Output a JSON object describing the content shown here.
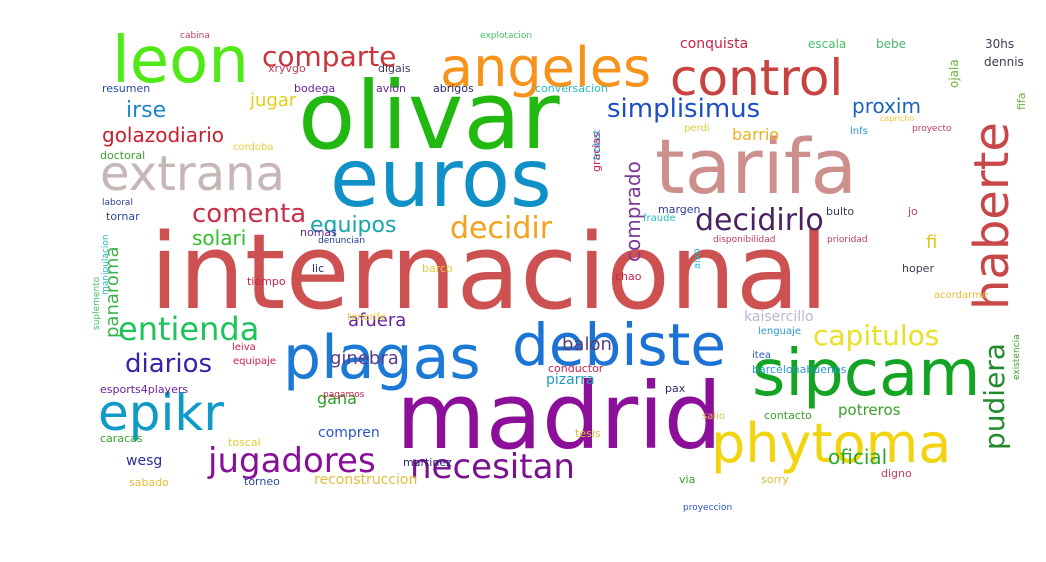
{
  "words": [
    {
      "text": "internacional",
      "color": "#cd5151"
    },
    {
      "text": "olivar",
      "color": "#21b80f"
    },
    {
      "text": "madrid",
      "color": "#8b0f99"
    },
    {
      "text": "euros",
      "color": "#0f91c8"
    },
    {
      "text": "tarifa",
      "color": "#cd8f8c"
    },
    {
      "text": "plagas",
      "color": "#1c7ad6"
    },
    {
      "text": "debiste",
      "color": "#1c73d6"
    },
    {
      "text": "sipcam",
      "color": "#12a422"
    },
    {
      "text": "phytoma",
      "color": "#f1d40d"
    },
    {
      "text": "leon",
      "color": "#4fea16"
    },
    {
      "text": "angeles",
      "color": "#f7931b"
    },
    {
      "text": "control",
      "color": "#c94242"
    },
    {
      "text": "extrana",
      "color": "#c6b6b6"
    },
    {
      "text": "haberte",
      "color": "#c94747"
    },
    {
      "text": "epikr",
      "color": "#0f9ac8"
    },
    {
      "text": "jugadores",
      "color": "#880f99"
    },
    {
      "text": "necesitan",
      "color": "#7a1191"
    },
    {
      "text": "entienda",
      "color": "#1ec45b"
    },
    {
      "text": "decidirlo",
      "color": "#4a2261"
    },
    {
      "text": "comparte",
      "color": "#c9353d"
    },
    {
      "text": "simplisimus",
      "color": "#1c4fc4"
    },
    {
      "text": "decidir",
      "color": "#f3a31b"
    },
    {
      "text": "comenta",
      "color": "#c9304c"
    },
    {
      "text": "capitulos",
      "color": "#e9e028"
    },
    {
      "text": "pudiera",
      "color": "#228a2c"
    },
    {
      "text": "diarios",
      "color": "#3d22a8"
    },
    {
      "text": "irse",
      "color": "#1e84c8"
    },
    {
      "text": "golazodiario",
      "color": "#c91e2e"
    },
    {
      "text": "jugar",
      "color": "#e4cd16"
    },
    {
      "text": "equipos",
      "color": "#18a6a8"
    },
    {
      "text": "proxim",
      "color": "#1e63b8"
    },
    {
      "text": "barrio",
      "color": "#e9b11e"
    },
    {
      "text": "solari",
      "color": "#2dbf24"
    },
    {
      "text": "comprado",
      "color": "#7b3b99"
    },
    {
      "text": "fi",
      "color": "#e3c21b"
    },
    {
      "text": "panaroma",
      "color": "#3eb34b"
    },
    {
      "text": "afuera",
      "color": "#6a229b"
    },
    {
      "text": "balon",
      "color": "#5a3e7a"
    },
    {
      "text": "ginebra",
      "color": "#5b3b8f"
    },
    {
      "text": "gana",
      "color": "#2b9e26"
    },
    {
      "text": "compren",
      "color": "#2a58c4"
    },
    {
      "text": "oficial",
      "color": "#2ba92e"
    },
    {
      "text": "potreros",
      "color": "#3aa12c"
    },
    {
      "text": "reconstruccion",
      "color": "#e3bd3a"
    },
    {
      "text": "wesg",
      "color": "#2c2c99"
    },
    {
      "text": "kaisercillo",
      "color": "#c0b5d3"
    },
    {
      "text": "pizarra",
      "color": "#1e9bb8"
    },
    {
      "text": "conquista",
      "color": "#c9224a"
    },
    {
      "text": "escala",
      "color": "#49c06a"
    },
    {
      "text": "bebe",
      "color": "#4bb36a"
    },
    {
      "text": "30hs",
      "color": "#3b3b55"
    },
    {
      "text": "ojala",
      "color": "#6bb332"
    },
    {
      "text": "dennis",
      "color": "#3b3b55"
    },
    {
      "text": "fifa",
      "color": "#68b33a"
    },
    {
      "text": "xryvgo",
      "color": "#c0405b"
    },
    {
      "text": "digais",
      "color": "#3b3b55"
    },
    {
      "text": "resumen",
      "color": "#2a4b9e"
    },
    {
      "text": "bodega",
      "color": "#6a229b"
    },
    {
      "text": "avion",
      "color": "#6a229b"
    },
    {
      "text": "abrigos",
      "color": "#2a2a6e"
    },
    {
      "text": "conversacion",
      "color": "#28b9c4"
    },
    {
      "text": "perdi",
      "color": "#e3cc3a"
    },
    {
      "text": "lnfs",
      "color": "#2a99d1"
    },
    {
      "text": "proyecto",
      "color": "#c0405b"
    },
    {
      "text": "capricho",
      "color": "#f2c23a"
    },
    {
      "text": "cordoba",
      "color": "#e8cc3a"
    },
    {
      "text": "doctoral",
      "color": "#3aa12c"
    },
    {
      "text": "gracias",
      "color": "#c9224a"
    },
    {
      "text": "trobat",
      "color": "#2a99d1"
    },
    {
      "text": "margen",
      "color": "#2c3d99"
    },
    {
      "text": "fraude",
      "color": "#28b9c4"
    },
    {
      "text": "bulto",
      "color": "#3b3b55"
    },
    {
      "text": "jo",
      "color": "#c0405b"
    },
    {
      "text": "laboral",
      "color": "#2c3d99"
    },
    {
      "text": "tornar",
      "color": "#2a4b9e"
    },
    {
      "text": "nomas",
      "color": "#6a229b"
    },
    {
      "text": "denuncian",
      "color": "#1e3c8a"
    },
    {
      "text": "disponibilidad",
      "color": "#c0405b"
    },
    {
      "text": "prioridad",
      "color": "#c0405b"
    },
    {
      "text": "manipulacion",
      "color": "#28b9c4"
    },
    {
      "text": "aixo",
      "color": "#28b9c4"
    },
    {
      "text": "lic",
      "color": "#2a2a6e"
    },
    {
      "text": "barco",
      "color": "#e3cc3a"
    },
    {
      "text": "hoper",
      "color": "#3b3b55"
    },
    {
      "text": "chao",
      "color": "#c9224a"
    },
    {
      "text": "tiempo",
      "color": "#c9224a"
    },
    {
      "text": "acordarme",
      "color": "#e3bd3a"
    },
    {
      "text": "suplemento",
      "color": "#49c06a"
    },
    {
      "text": "tenerife",
      "color": "#e3cc3a"
    },
    {
      "text": "lenguaje",
      "color": "#2a99d1"
    },
    {
      "text": "leiva",
      "color": "#c9224a"
    },
    {
      "text": "itea",
      "color": "#2a58c4"
    },
    {
      "text": "existencia",
      "color": "#3aa12c"
    },
    {
      "text": "equipaje",
      "color": "#c9224a"
    },
    {
      "text": "barcelonabuenos",
      "color": "#2a99d1"
    },
    {
      "text": "esports4players",
      "color": "#6a229b"
    },
    {
      "text": "conductor",
      "color": "#c9224a"
    },
    {
      "text": "pax",
      "color": "#2a2a6e"
    },
    {
      "text": "pagamos",
      "color": "#c9224a"
    },
    {
      "text": "salio",
      "color": "#e3bd3a"
    },
    {
      "text": "contacto",
      "color": "#3aa12c"
    },
    {
      "text": "caracas",
      "color": "#3aa12c"
    },
    {
      "text": "toscal",
      "color": "#e3cc3a"
    },
    {
      "text": "tesis",
      "color": "#e3bd3a"
    },
    {
      "text": "martinez",
      "color": "#2a2a6e"
    },
    {
      "text": "via",
      "color": "#3aa12c"
    },
    {
      "text": "sorry",
      "color": "#e3bd3a"
    },
    {
      "text": "digno",
      "color": "#c0405b"
    },
    {
      "text": "sabado",
      "color": "#e3bd3a"
    },
    {
      "text": "torneo",
      "color": "#2a4b9e"
    },
    {
      "text": "proyeccion",
      "color": "#2a58c4"
    },
    {
      "text": "cabina",
      "color": "#c0405b"
    },
    {
      "text": "explotacion",
      "color": "#49c06a"
    }
  ]
}
